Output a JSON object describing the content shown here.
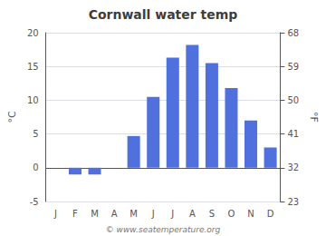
{
  "chart_data": {
    "type": "bar",
    "title": "Cornwall water temp",
    "categories": [
      "J",
      "F",
      "M",
      "A",
      "M",
      "J",
      "J",
      "A",
      "S",
      "O",
      "N",
      "D"
    ],
    "values": [
      0,
      -1.0,
      -1.0,
      0,
      4.7,
      10.5,
      16.3,
      18.2,
      15.5,
      11.8,
      7.0,
      3.0
    ],
    "ylabel": "°C",
    "ylim": [
      -5,
      20
    ],
    "yticks": [
      -5,
      0,
      5,
      10,
      15,
      20
    ],
    "y2label": "°F",
    "y2lim": [
      23,
      68
    ],
    "y2ticks": [
      23,
      32,
      41,
      50,
      59,
      68
    ],
    "grid": true,
    "annotations": [
      "© www.seatemperature.org"
    ]
  }
}
